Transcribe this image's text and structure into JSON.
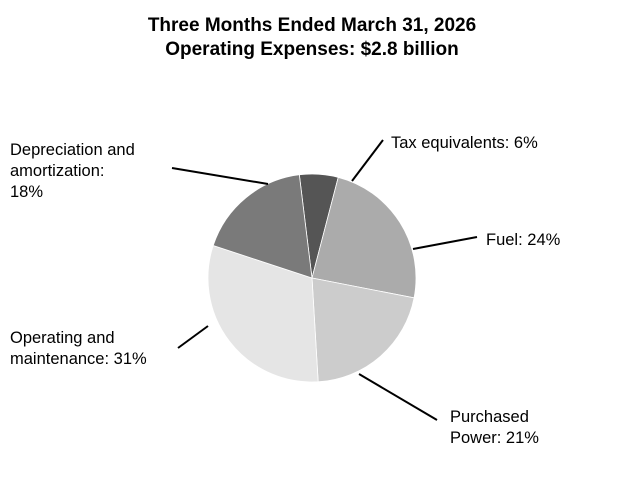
{
  "chart_data": {
    "type": "pie",
    "title": "Three Months Ended March 31, 2026",
    "subtitle": "Operating Expenses: $2.8 billion",
    "slices": [
      {
        "label": "Tax equivalents: 6%",
        "value": 6,
        "color": "#555555"
      },
      {
        "label": "Fuel: 24%",
        "value": 24,
        "color": "#ababab"
      },
      {
        "label": "Purchased\nPower: 21%",
        "value": 21,
        "color": "#cccccc"
      },
      {
        "label": "Operating and\nmaintenance: 31%",
        "value": 31,
        "color": "#e5e5e5"
      },
      {
        "label": "Depreciation and\namortization:\n18%",
        "value": 18,
        "color": "#7a7a7a"
      }
    ]
  }
}
